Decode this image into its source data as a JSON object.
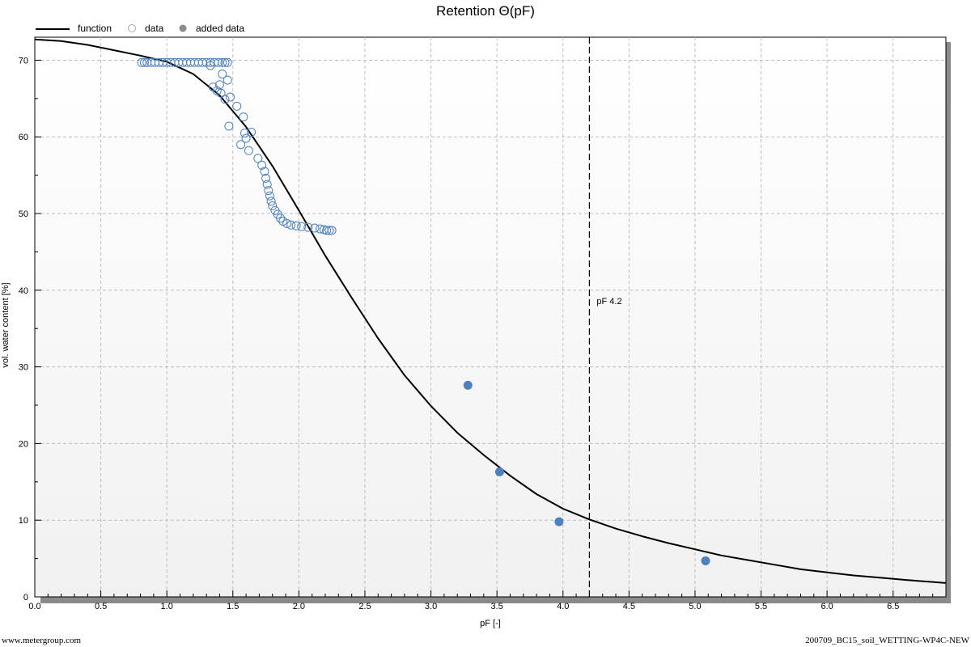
{
  "chart_data": {
    "type": "scatter",
    "title": "Retention Θ(pF)",
    "xlabel": "pF [-]",
    "ylabel": "vol. water content [%]",
    "xlim": [
      0,
      6.9
    ],
    "ylim": [
      0,
      73
    ],
    "x_ticks": [
      0.0,
      0.5,
      1.0,
      1.5,
      2.0,
      2.5,
      3.0,
      3.5,
      4.0,
      4.5,
      5.0,
      5.5,
      6.0,
      6.5
    ],
    "x_tick_labels": [
      "0.0",
      "0.5",
      "1.0",
      "1.5",
      "2.0",
      "2.5",
      "3.0",
      "3.5",
      "4.0",
      "4.5",
      "5.0",
      "5.5",
      "6.0",
      "6.5"
    ],
    "y_ticks": [
      0,
      10,
      20,
      30,
      40,
      50,
      60,
      70
    ],
    "y_tick_labels": [
      "0",
      "10",
      "20",
      "30",
      "40",
      "50",
      "60",
      "70"
    ],
    "grid": true,
    "legend_position": "top-left",
    "legend": [
      "function",
      "data",
      "added data"
    ],
    "series": [
      {
        "name": "function",
        "kind": "line",
        "color": "#000000",
        "x": [
          0.0,
          0.2,
          0.4,
          0.6,
          0.8,
          1.0,
          1.2,
          1.4,
          1.6,
          1.8,
          2.0,
          2.2,
          2.4,
          2.6,
          2.8,
          3.0,
          3.2,
          3.4,
          3.6,
          3.8,
          4.0,
          4.2,
          4.4,
          4.6,
          4.8,
          5.0,
          5.2,
          5.4,
          5.6,
          5.8,
          6.0,
          6.2,
          6.4,
          6.6,
          6.9
        ],
        "y": [
          72.7,
          72.5,
          72.0,
          71.3,
          70.6,
          69.8,
          68.2,
          65.4,
          61.3,
          56.2,
          50.4,
          44.5,
          39.0,
          33.7,
          28.9,
          24.9,
          21.4,
          18.5,
          15.8,
          13.4,
          11.5,
          10.1,
          8.9,
          7.9,
          7.0,
          6.2,
          5.4,
          4.8,
          4.2,
          3.6,
          3.2,
          2.8,
          2.5,
          2.2,
          1.8
        ]
      },
      {
        "name": "data",
        "kind": "scatter-open",
        "color": "#4f81bd",
        "x": [
          0.81,
          0.83,
          0.85,
          0.88,
          0.91,
          0.94,
          0.97,
          1.0,
          1.03,
          1.06,
          1.09,
          1.12,
          1.15,
          1.18,
          1.21,
          1.24,
          1.27,
          1.3,
          1.33,
          1.36,
          1.39,
          1.42,
          1.44,
          1.46,
          1.33,
          1.35,
          1.38,
          1.4,
          1.42,
          1.46,
          1.48,
          1.41,
          1.44,
          1.47,
          1.53,
          1.58,
          1.6,
          1.56,
          1.59,
          1.62,
          1.64,
          1.69,
          1.72,
          1.74,
          1.75,
          1.76,
          1.77,
          1.78,
          1.79,
          1.8,
          1.82,
          1.84,
          1.86,
          1.88,
          1.91,
          1.94,
          1.98,
          2.02,
          2.07,
          2.12,
          2.16,
          2.19,
          2.21,
          2.23,
          2.25
        ],
        "y": [
          69.7,
          69.7,
          69.7,
          69.7,
          69.7,
          69.7,
          69.7,
          69.7,
          69.7,
          69.7,
          69.7,
          69.7,
          69.7,
          69.7,
          69.7,
          69.7,
          69.7,
          69.7,
          69.7,
          69.7,
          69.7,
          69.7,
          69.7,
          69.7,
          69.3,
          66.5,
          66.0,
          66.8,
          68.2,
          67.4,
          65.2,
          65.7,
          64.9,
          61.4,
          64.0,
          62.6,
          59.8,
          59.0,
          60.5,
          58.2,
          60.6,
          57.2,
          56.3,
          55.5,
          54.6,
          53.8,
          53.0,
          52.3,
          51.6,
          51.0,
          50.4,
          49.9,
          49.4,
          49.0,
          48.7,
          48.5,
          48.4,
          48.3,
          48.2,
          48.1,
          48.0,
          47.9,
          47.8,
          47.8,
          47.8
        ]
      },
      {
        "name": "added data",
        "kind": "scatter-filled",
        "color": "#4f81bd",
        "x": [
          3.28,
          3.52,
          3.97,
          5.08
        ],
        "y": [
          27.6,
          16.3,
          9.8,
          4.7
        ]
      }
    ],
    "annotations": [
      {
        "type": "vline",
        "x": 4.2,
        "label": "pF 4.2"
      }
    ]
  },
  "footer": {
    "left": "www.metergroup.com",
    "right": "200709_BC15_soil_WETTING-WP4C-NEW"
  }
}
